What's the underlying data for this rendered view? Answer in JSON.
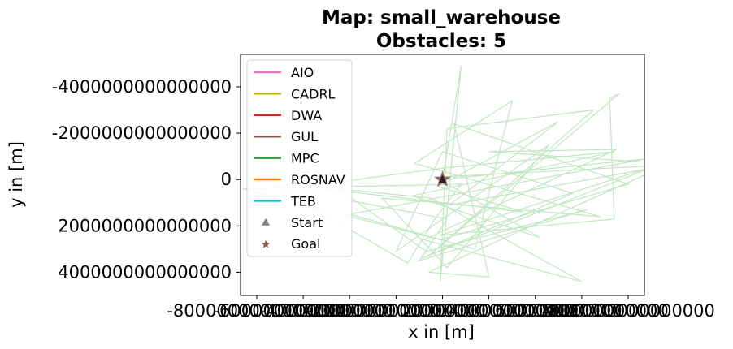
{
  "chart_data": {
    "type": "line",
    "title_line1": "Map: small_warehouse",
    "title_line2": "Obstacles: 5",
    "xlabel": "x in [m]",
    "ylabel": "y in [m]",
    "xlim": [
      -8700000000000000,
      8700000000000000
    ],
    "ylim": [
      5000000000000000,
      -5400000000000000
    ],
    "y_inverted": true,
    "xticks": [
      {
        "value": -8000000000000000,
        "label": "-8000000000000000"
      },
      {
        "value": -6000000000000000,
        "label": "-6000000000000000"
      },
      {
        "value": -4000000000000000,
        "label": "-4000000000000000"
      },
      {
        "value": -2000000000000000,
        "label": "-2000000000000000"
      },
      {
        "value": 0,
        "label": "0"
      },
      {
        "value": 2000000000000000,
        "label": "2000000000000000"
      },
      {
        "value": 4000000000000000,
        "label": "4000000000000000"
      },
      {
        "value": 6000000000000000,
        "label": "6000000000000000"
      },
      {
        "value": 8000000000000000,
        "label": "8000000000000000"
      }
    ],
    "yticks": [
      {
        "value": -4000000000000000,
        "label": "-4000000000000000"
      },
      {
        "value": -2000000000000000,
        "label": "-2000000000000000"
      },
      {
        "value": 0,
        "label": "0"
      },
      {
        "value": 2000000000000000,
        "label": "2000000000000000"
      },
      {
        "value": 4000000000000000,
        "label": "4000000000000000"
      }
    ],
    "legend_position": "top-left",
    "legend": [
      {
        "name": "AIO",
        "kind": "line",
        "color": "#e377c2"
      },
      {
        "name": "CADRL",
        "kind": "line",
        "color": "#bcbd22"
      },
      {
        "name": "DWA",
        "kind": "line",
        "color": "#d62728"
      },
      {
        "name": "GUL",
        "kind": "line",
        "color": "#8c564b"
      },
      {
        "name": "MPC",
        "kind": "line",
        "color": "#2ca02c"
      },
      {
        "name": "ROSNAV",
        "kind": "line",
        "color": "#ff7f0e"
      },
      {
        "name": "TEB",
        "kind": "line",
        "color": "#17becf"
      },
      {
        "name": "Start",
        "kind": "triangle",
        "color": "#7f7f7f"
      },
      {
        "name": "Goal",
        "kind": "star",
        "color": "#8c564b"
      }
    ],
    "series": [
      {
        "name": "MPC",
        "color": "#4cb84c",
        "opacity": 0.35,
        "points": [
          [
            0,
            0
          ],
          [
            800000000000000,
            -4900000000000000
          ],
          [
            -100000000000000,
            4400000000000000
          ],
          [
            200000000000000,
            -2200000000000000
          ],
          [
            6500000000000000,
            -3000000000000000
          ],
          [
            -600000000000000,
            3300000000000000
          ],
          [
            7600000000000000,
            -3700000000000000
          ],
          [
            7200000000000000,
            -3500000000000000
          ],
          [
            7400000000000000,
            1700000000000000
          ],
          [
            -100000000000000,
            2400000000000000
          ],
          [
            9500000000000000,
            -700000000000000
          ],
          [
            2000000000000000,
            -1200000000000000
          ],
          [
            7500000000000000,
            -1300000000000000
          ],
          [
            -800000000000000,
            2600000000000000
          ],
          [
            6000000000000000,
            4400000000000000
          ],
          [
            -500000000000000,
            800000000000000
          ],
          [
            -4500000000000000,
            400000000000000
          ],
          [
            -700000000000000,
            3100000000000000
          ],
          [
            6200000000000000,
            1300000000000000
          ],
          [
            -1000000000000000,
            3500000000000000
          ],
          [
            200000000000000,
            1700000000000000
          ],
          [
            -7200000000000000,
            300000000000000
          ],
          [
            -1500000000000000,
            3600000000000000
          ],
          [
            -400000000000000,
            1800000000000000
          ],
          [
            800000000000000,
            200000000000000
          ],
          [
            -8600000000000000,
            400000000000000
          ],
          [
            -100000000000000,
            2600000000000000
          ],
          [
            8000000000000000,
            200000000000000
          ],
          [
            500000000000000,
            -2400000000000000
          ],
          [
            2000000000000000,
            4200000000000000
          ],
          [
            -600000000000000,
            4000000000000000
          ],
          [
            9600000000000000,
            -600000000000000
          ],
          [
            300000000000000,
            1100000000000000
          ],
          [
            5000000000000000,
            -2500000000000000
          ],
          [
            -200000000000000,
            300000000000000
          ],
          [
            3500000000000000,
            1400000000000000
          ],
          [
            -6000000000000000,
            300000000000000
          ],
          [
            100000000000000,
            -500000000000000
          ],
          [
            7400000000000000,
            -1200000000000000
          ],
          [
            -1300000000000000,
            700000000000000
          ],
          [
            4200000000000000,
            2500000000000000
          ],
          [
            -300000000000000,
            -100000000000000
          ],
          [
            9200000000000000,
            -600000000000000
          ],
          [
            -900000000000000,
            3400000000000000
          ],
          [
            5600000000000000,
            600000000000000
          ],
          [
            0,
            -1200000000000000
          ],
          [
            -2000000000000000,
            3100000000000000
          ],
          [
            4600000000000000,
            -1500000000000000
          ],
          [
            200000000000000,
            3800000000000000
          ],
          [
            -2600000000000000,
            800000000000000
          ],
          [
            6800000000000000,
            1600000000000000
          ],
          [
            -1200000000000000,
            -700000000000000
          ],
          [
            3000000000000000,
            -3400000000000000
          ],
          [
            1400000000000000,
            3000000000000000
          ],
          [
            -4000000000000000,
            1500000000000000
          ],
          [
            8800000000000000,
            -900000000000000
          ],
          [
            0,
            0
          ]
        ]
      }
    ],
    "start_point": [
      0,
      0
    ],
    "goal_point": [
      0,
      0
    ]
  }
}
